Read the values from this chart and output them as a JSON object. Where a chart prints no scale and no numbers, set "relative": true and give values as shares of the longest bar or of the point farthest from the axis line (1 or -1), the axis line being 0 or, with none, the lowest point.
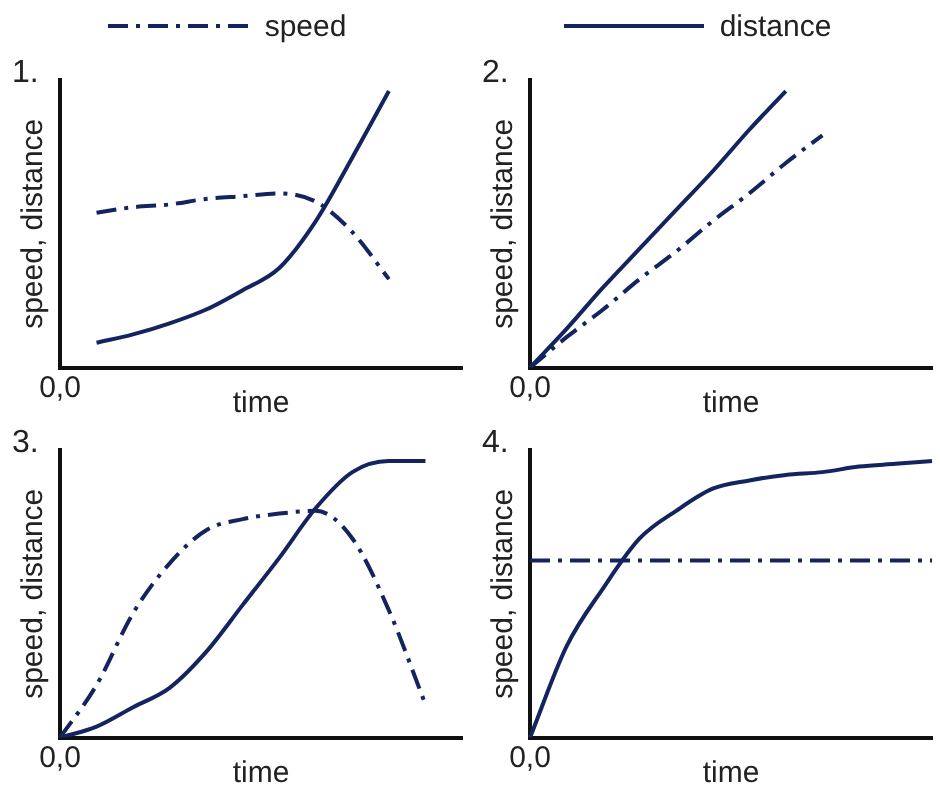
{
  "chart_data": [
    {
      "type": "line",
      "title": "1.",
      "xlabel": "time",
      "ylabel": "speed, distance",
      "relative": true,
      "legend": "top",
      "annotations": [
        "0,0"
      ],
      "categories": [
        null,
        null,
        null,
        null,
        null,
        null,
        null,
        null,
        null,
        null,
        null,
        null
      ],
      "series": [
        {
          "name": "speed",
          "color": "#14245e",
          "line_style": "dashed",
          "values": [
            null,
            0.56,
            0.58,
            0.59,
            0.61,
            0.62,
            0.63,
            0.6,
            0.49,
            0.32,
            null,
            null
          ]
        },
        {
          "name": "distance",
          "color": "#14245e",
          "line_style": "solid",
          "values": [
            null,
            0.09,
            0.12,
            0.16,
            0.21,
            0.28,
            0.36,
            0.53,
            0.76,
            1,
            null,
            null
          ]
        }
      ]
    },
    {
      "type": "line",
      "title": "2.",
      "xlabel": "time",
      "ylabel": "speed, distance",
      "relative": true,
      "annotations": [
        "0,0"
      ],
      "categories": [
        null,
        null,
        null,
        null,
        null,
        null,
        null,
        null,
        null,
        null,
        null,
        null
      ],
      "series": [
        {
          "color": "#14245e",
          "line_style": "dashed",
          "values": [
            0,
            0.11,
            0.21,
            0.32,
            0.42,
            0.53,
            0.63,
            0.74,
            0.84,
            null,
            null,
            null
          ]
        },
        {
          "color": "#14245e",
          "line_style": "solid",
          "values": [
            0,
            0.14,
            0.29,
            0.43,
            0.57,
            0.71,
            0.86,
            1,
            null,
            null,
            null,
            null
          ]
        }
      ]
    },
    {
      "type": "line",
      "title": "3.",
      "xlabel": "time",
      "ylabel": "speed, distance",
      "relative": true,
      "annotations": [
        "0,0"
      ],
      "categories": [
        null,
        null,
        null,
        null,
        null,
        null,
        null,
        null,
        null,
        null,
        null,
        null
      ],
      "series": [
        {
          "color": "#14245e",
          "line_style": "dashed",
          "values": [
            0,
            0.19,
            0.45,
            0.63,
            0.75,
            0.79,
            0.81,
            0.82,
            0.72,
            0.46,
            0.12,
            null
          ]
        },
        {
          "color": "#14245e",
          "line_style": "solid",
          "values": [
            0,
            0.04,
            0.11,
            0.18,
            0.31,
            0.48,
            0.65,
            0.83,
            0.96,
            1,
            1,
            null
          ]
        }
      ]
    },
    {
      "type": "line",
      "title": "4.",
      "xlabel": "time",
      "ylabel": "speed, distance",
      "relative": true,
      "annotations": [
        "0,0"
      ],
      "categories": [
        null,
        null,
        null,
        null,
        null,
        null,
        null,
        null,
        null,
        null,
        null,
        null
      ],
      "series": [
        {
          "color": "#14245e",
          "line_style": "dashed",
          "values": [
            0.64,
            0.64,
            0.64,
            0.64,
            0.64,
            0.64,
            0.64,
            0.64,
            0.64,
            0.64,
            0.64,
            0.64
          ]
        },
        {
          "color": "#14245e",
          "line_style": "solid",
          "values": [
            0,
            0.33,
            0.54,
            0.72,
            0.82,
            0.9,
            0.93,
            0.95,
            0.96,
            0.98,
            0.99,
            1
          ]
        }
      ]
    }
  ]
}
